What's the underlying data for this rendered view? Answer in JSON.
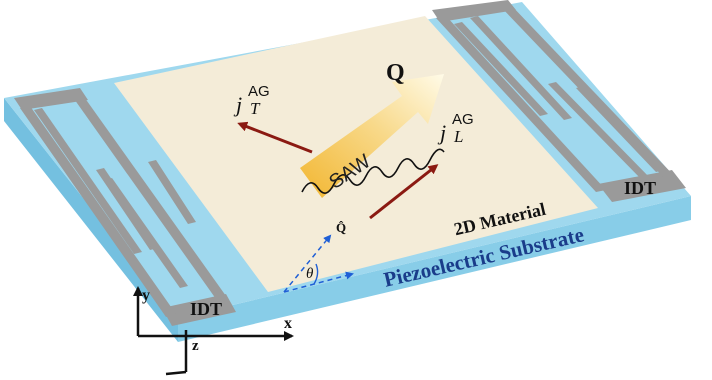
{
  "labels": {
    "idt_left": "IDT",
    "idt_right": "IDT",
    "material": "2D Material",
    "substrate": "Piezoelectric Substrate",
    "saw": "SAW",
    "wavevector": "Q",
    "unit_vector": "Q̂",
    "angle": "θ",
    "current_transverse": {
      "symbol": "j",
      "sup": "AG",
      "sub": "T"
    },
    "current_longitudinal": {
      "symbol": "j",
      "sup": "AG",
      "sub": "L"
    },
    "axis_x": "x",
    "axis_y": "y",
    "axis_z": "z"
  },
  "colors": {
    "substrate_top": "#9fd8ee",
    "substrate_side": "#78c4e4",
    "material": "#f4ecd8",
    "electrode": "#9a9a9a",
    "current_arrow": "#8b1a12",
    "saw_arrow_start": "#f2b630",
    "saw_arrow_end": "#fffbe8",
    "dashed_vector": "#1f5fd6",
    "text": "#111111"
  }
}
